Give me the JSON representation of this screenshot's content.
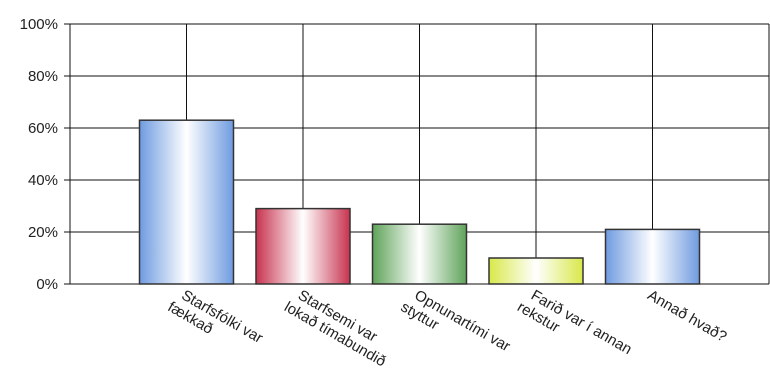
{
  "chart_data": {
    "type": "bar",
    "categories": [
      "Starfsfólki var\nfækkað",
      "Starfsemi var\nlokað tímabundið",
      "Opnunartími var\nstyttur",
      "Farið var í annan\nrekstur",
      "Annað hvað?"
    ],
    "values": [
      63,
      29,
      23,
      10,
      21
    ],
    "colors": [
      "#6f9be0",
      "#c8334f",
      "#5fa35a",
      "#d8e84a",
      "#6f9be0"
    ],
    "ylim": [
      0,
      100
    ],
    "yticks": [
      {
        "value": 0,
        "label": "0%"
      },
      {
        "value": 20,
        "label": "20%"
      },
      {
        "value": 40,
        "label": "40%"
      },
      {
        "value": 60,
        "label": "60%"
      },
      {
        "value": 80,
        "label": "80%"
      },
      {
        "value": 100,
        "label": "100%"
      }
    ],
    "grid": true
  }
}
